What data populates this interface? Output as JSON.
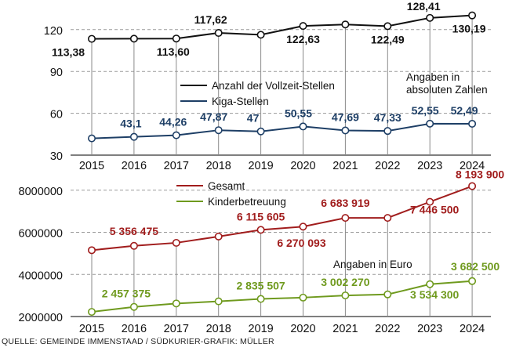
{
  "source": "QUELLE: GEMEINDE IMMENSTAAD / SÜDKURIER-GRAFIK: MÜLLER",
  "chart_data": [
    {
      "type": "line",
      "x": [
        "2015",
        "2016",
        "2017",
        "2018",
        "2019",
        "2020",
        "2021",
        "2022",
        "2023",
        "2024"
      ],
      "ylim": [
        30,
        130
      ],
      "yticks": [
        "30",
        "60",
        "90",
        "120"
      ],
      "grid": true,
      "note_lines": [
        "Angaben in",
        "absoluten Zahlen"
      ],
      "legend": "center",
      "series": [
        {
          "name": "Anzahl der Vollzeit-Stellen",
          "color": "#111111",
          "values": [
            113.38,
            113.5,
            113.6,
            117.62,
            116.3,
            122.63,
            123.7,
            122.49,
            128.41,
            130.19
          ],
          "labels": [
            "113,38",
            "",
            "113,60",
            "117,62",
            "",
            "122,63",
            "",
            "122,49",
            "128,41",
            "130,19"
          ]
        },
        {
          "name": "Kiga-Stellen",
          "color": "#1e3f66",
          "values": [
            42.0,
            43.1,
            44.26,
            47.87,
            47,
            50.55,
            47.69,
            47.33,
            52.55,
            52.49
          ],
          "labels": [
            "",
            "43,1",
            "44,26",
            "47,87",
            "47",
            "50,55",
            "47,69",
            "47,33",
            "52,55",
            "52,49"
          ]
        }
      ]
    },
    {
      "type": "line",
      "x": [
        "2015",
        "2016",
        "2017",
        "2018",
        "2019",
        "2020",
        "2021",
        "2022",
        "2023",
        "2024"
      ],
      "ylim": [
        2000000,
        8400000
      ],
      "yticks": [
        "2000000",
        "4000000",
        "6000000",
        "8000000"
      ],
      "grid": true,
      "note_lines": [
        "Angaben in Euro"
      ],
      "legend": "top-center",
      "series": [
        {
          "name": "Gesamt",
          "color": "#a11d1d",
          "values": [
            5150000,
            5356475,
            5500000,
            5800000,
            6115605,
            6270093,
            6683919,
            6683919,
            7446500,
            8193900
          ],
          "labels": [
            "",
            "5 356 475",
            "",
            "",
            "6 115 605",
            "6 270 093",
            "6 683 919",
            "",
            "7 446 500",
            "8 193 900"
          ]
        },
        {
          "name": "Kinderbetreuung",
          "color": "#6f9a1e",
          "values": [
            2220000,
            2457375,
            2620000,
            2720000,
            2835507,
            2900000,
            3002270,
            3050000,
            3534300,
            3682500
          ],
          "labels": [
            "",
            "2 457 375",
            "",
            "",
            "2 835 507",
            "",
            "3 002 270",
            "",
            "3 534 300",
            "3 682 500"
          ]
        }
      ]
    }
  ]
}
